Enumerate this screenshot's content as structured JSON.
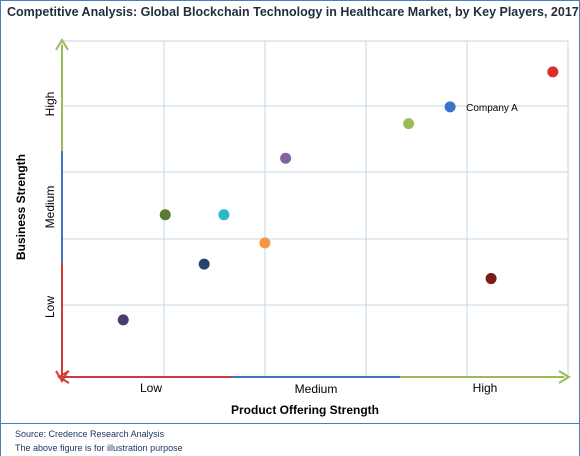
{
  "chart_data": {
    "type": "scatter",
    "title": "Competitive Analysis: Global Blockchain Technology in Healthcare Market, by Key Players, 2017",
    "xlabel": "Product Offering Strength",
    "ylabel": "Business Strength",
    "xlim": [
      0,
      10
    ],
    "ylim": [
      0,
      10
    ],
    "x_tick_labels": [
      "Low",
      "Medium",
      "High"
    ],
    "y_tick_labels": [
      "Low",
      "Medium",
      "High"
    ],
    "grid": true,
    "points": [
      {
        "x": 1.21,
        "y": 1.7,
        "color": "#4b3a73"
      },
      {
        "x": 2.04,
        "y": 4.83,
        "color": "#5b7a2e"
      },
      {
        "x": 2.81,
        "y": 3.36,
        "color": "#27456b"
      },
      {
        "x": 3.2,
        "y": 4.83,
        "color": "#31b5cc"
      },
      {
        "x": 4.01,
        "y": 3.99,
        "color": "#f79646"
      },
      {
        "x": 4.42,
        "y": 6.51,
        "color": "#8064a2"
      },
      {
        "x": 6.85,
        "y": 7.54,
        "color": "#9bbb59"
      },
      {
        "x": 7.67,
        "y": 8.04,
        "color": "#3b73c6",
        "label": "Company A"
      },
      {
        "x": 8.48,
        "y": 2.93,
        "color": "#7b1c1c"
      },
      {
        "x": 9.7,
        "y": 9.08,
        "color": "#d9302c"
      }
    ]
  },
  "footer": {
    "source": "Source: Credence Research Analysis",
    "disclaimer": "The above figure is for illustration purpose"
  },
  "colors": {
    "border": "#4a7ebb",
    "grid": "#c5d4e6",
    "axis_low": "#d23a3a",
    "axis_medium": "#4472c4",
    "axis_high": "#9bbb59"
  }
}
